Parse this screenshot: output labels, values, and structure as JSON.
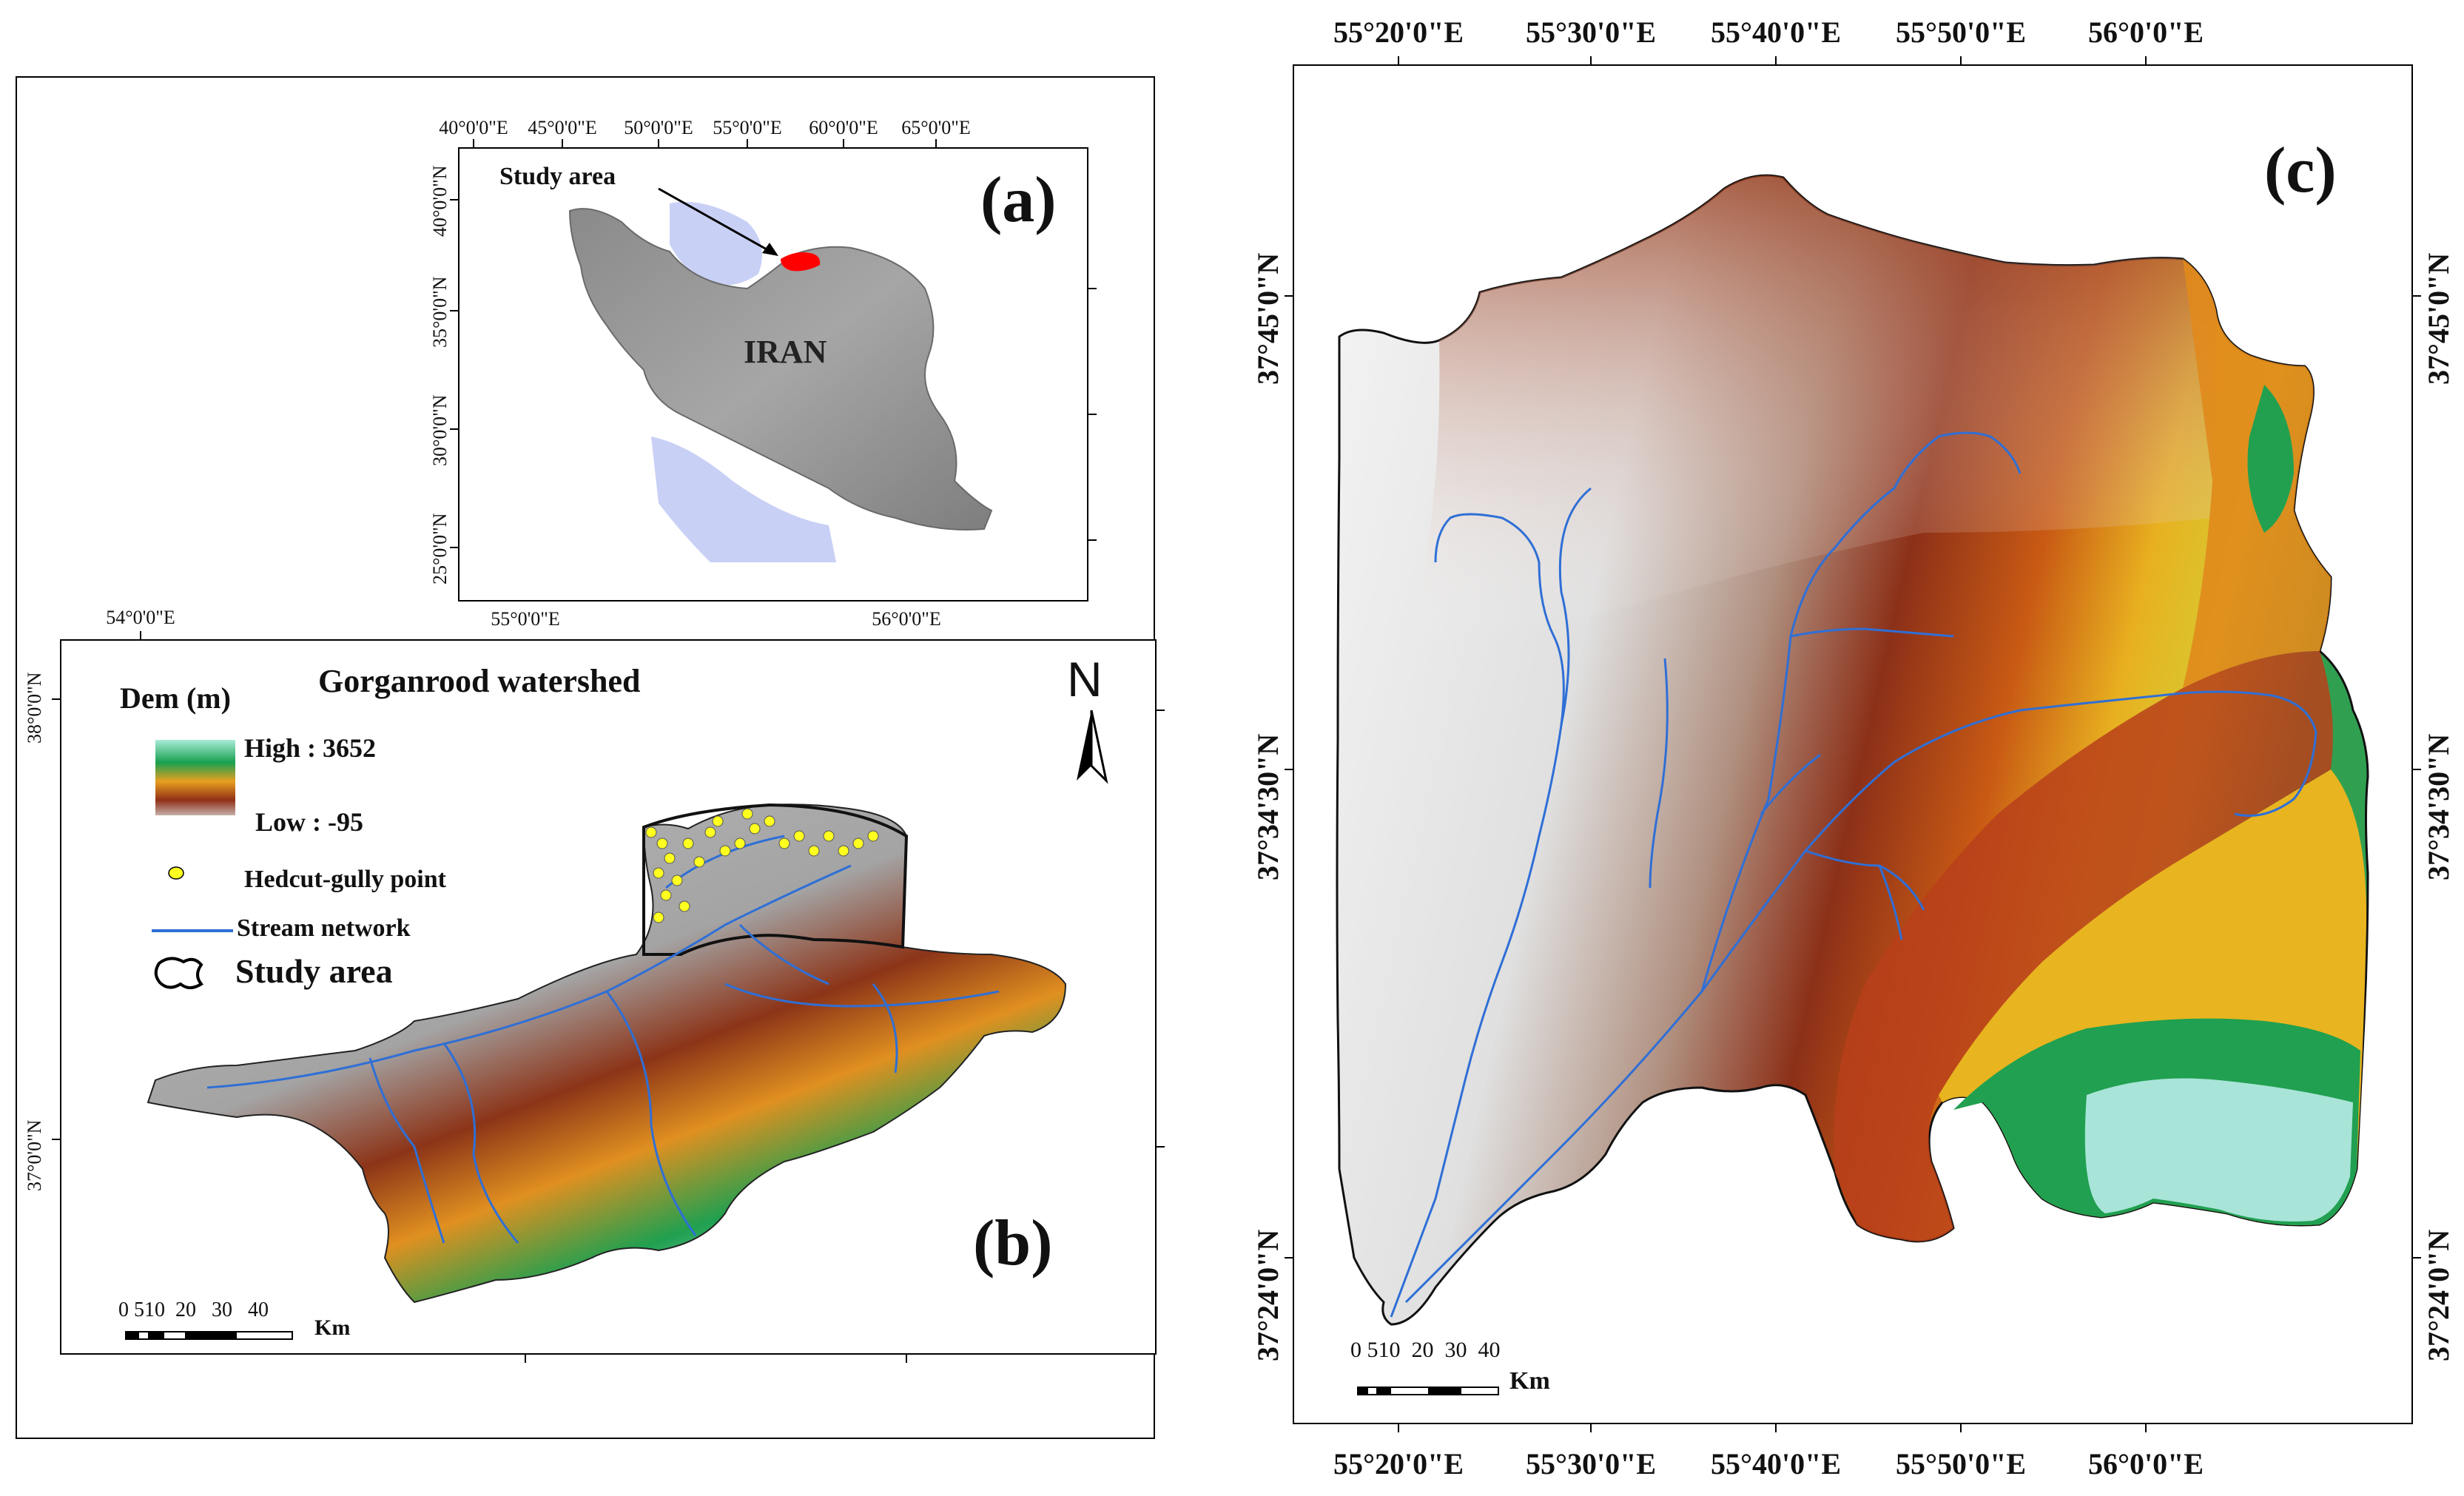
{
  "panel_a": {
    "letter": "(a)",
    "lon_ticks": [
      "40°0'0\"E",
      "45°0'0\"E",
      "50°0'0\"E",
      "55°0'0\"E",
      "60°0'0\"E",
      "65°0'0\"E"
    ],
    "lat_ticks": [
      "40°0'0\"N",
      "35°0'0\"N",
      "30°0'0\"N",
      "25°0'0\"N"
    ],
    "study_area_label": "Study  area",
    "country_label": "IRAN",
    "colors": {
      "land": "#9a9a9a",
      "water": "#c8d0f5",
      "study_area": "#ff0000"
    }
  },
  "panel_b": {
    "letter": "(b)",
    "lon_ticks_top": [
      "54°0'0\"E"
    ],
    "lon_ticks_bottom": [
      "55°0'0\"E",
      "56°0'0\"E"
    ],
    "lat_ticks": [
      "38°0'0\"N",
      "37°0'0\"N"
    ],
    "title": "Gorganrood watershed",
    "north_label": "N",
    "legend": {
      "dem_title": "Dem (m)",
      "high": "High : 3652",
      "low": "Low : -95",
      "gully": "Hedcut-gully  point",
      "stream": "Stream network",
      "study_area": "Study area"
    },
    "scale": {
      "ticks": "0 510  20   30   40",
      "unit": "Km"
    }
  },
  "panel_c": {
    "letter": "(c)",
    "lon_ticks": [
      "55°20'0\"E",
      "55°30'0\"E",
      "55°40'0\"E",
      "55°50'0\"E",
      "56°0'0\"E"
    ],
    "lat_ticks": [
      "37°45'0\"N",
      "37°34'30\"N",
      "37°24'0\"N"
    ],
    "scale": {
      "ticks": "0 510  20  30  40",
      "unit": "Km"
    }
  },
  "colors": {
    "dem_low": "#f2f2f2",
    "dem_mid_low": "#a0826e",
    "dem_mid": "#8b2d14",
    "dem_orange": "#e07818",
    "dem_yellow": "#e8d028",
    "dem_green": "#1a9a48",
    "dem_cyan": "#8ee0e8",
    "stream": "#2f6fd6",
    "gully": "#ffff20"
  }
}
